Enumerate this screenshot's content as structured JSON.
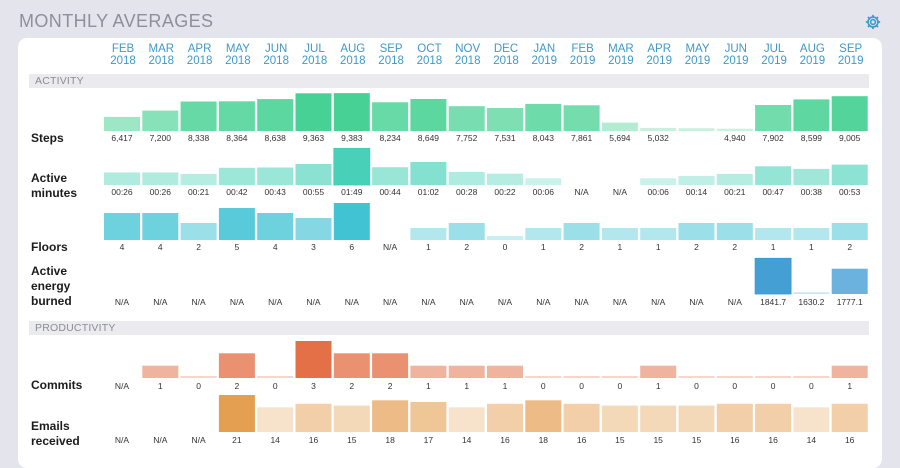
{
  "page_title": "MONTHLY AVERAGES",
  "icons": {
    "settings": "gear-icon"
  },
  "months": [
    [
      "FEB",
      "2018"
    ],
    [
      "MAR",
      "2018"
    ],
    [
      "APR",
      "2018"
    ],
    [
      "MAY",
      "2018"
    ],
    [
      "JUN",
      "2018"
    ],
    [
      "JUL",
      "2018"
    ],
    [
      "AUG",
      "2018"
    ],
    [
      "SEP",
      "2018"
    ],
    [
      "OCT",
      "2018"
    ],
    [
      "NOV",
      "2018"
    ],
    [
      "DEC",
      "2018"
    ],
    [
      "JAN",
      "2019"
    ],
    [
      "FEB",
      "2019"
    ],
    [
      "MAR",
      "2019"
    ],
    [
      "APR",
      "2019"
    ],
    [
      "MAY",
      "2019"
    ],
    [
      "JUN",
      "2019"
    ],
    [
      "JUL",
      "2019"
    ],
    [
      "AUG",
      "2019"
    ],
    [
      "SEP",
      "2019"
    ]
  ],
  "sections": {
    "activity": "ACTIVITY",
    "productivity": "PRODUCTIVITY"
  },
  "colors": {
    "accent": "#3f99c9",
    "steps": "#3ecf8e",
    "active_minutes": "#3ecfb4",
    "floors": "#38c0d2",
    "energy": "#3a9ad3",
    "commits": "#e2683c",
    "emails": "#e39a47"
  },
  "chart_data": [
    {
      "type": "bar",
      "id": "steps",
      "label": [
        "Steps"
      ],
      "values": [
        6417,
        7200,
        8338,
        8364,
        8638,
        9363,
        9383,
        8234,
        8649,
        7752,
        7531,
        8043,
        7861,
        5694,
        5032,
        5002,
        4940,
        7902,
        8599,
        9005
      ],
      "labels": [
        "6,417",
        "7,200",
        "8,338",
        "8,364",
        "8,638",
        "9,363",
        "9,383",
        "8,234",
        "8,649",
        "7,752",
        "7,531",
        "8,043",
        "7,861",
        "5,694",
        "5,032",
        "",
        "4,940",
        "7,902",
        "8,599",
        "9,005"
      ],
      "ylim": [
        4900,
        9400
      ]
    },
    {
      "type": "bar",
      "id": "active_minutes",
      "label": [
        "Active",
        "minutes"
      ],
      "values": [
        26,
        26,
        21,
        42,
        43,
        55,
        109,
        44,
        62,
        28,
        22,
        6,
        null,
        null,
        6,
        14,
        21,
        47,
        38,
        53
      ],
      "labels": [
        "00:26",
        "00:26",
        "00:21",
        "00:42",
        "00:43",
        "00:55",
        "01:49",
        "00:44",
        "01:02",
        "00:28",
        "00:22",
        "00:06",
        "N/A",
        "N/A",
        "00:06",
        "00:14",
        "00:21",
        "00:47",
        "00:38",
        "00:53"
      ],
      "ylim": [
        0,
        110
      ]
    },
    {
      "type": "bar",
      "id": "floors",
      "label": [
        "Floors"
      ],
      "values": [
        4,
        4,
        2,
        5,
        4,
        3,
        6,
        null,
        1,
        2,
        0,
        1,
        2,
        1,
        1,
        2,
        2,
        1,
        1,
        2
      ],
      "labels": [
        "4",
        "4",
        "2",
        "5",
        "4",
        "3",
        "6",
        "N/A",
        "1",
        "2",
        "0",
        "1",
        "2",
        "1",
        "1",
        "2",
        "2",
        "1",
        "1",
        "2"
      ],
      "ylim": [
        0,
        6
      ]
    },
    {
      "type": "bar",
      "id": "energy",
      "label": [
        "Active",
        "energy",
        "burned"
      ],
      "values": [
        null,
        null,
        null,
        null,
        null,
        null,
        null,
        null,
        null,
        null,
        null,
        null,
        null,
        null,
        null,
        null,
        null,
        1841.7,
        1630.2,
        1777.1
      ],
      "labels": [
        "N/A",
        "N/A",
        "N/A",
        "N/A",
        "N/A",
        "N/A",
        "N/A",
        "N/A",
        "N/A",
        "N/A",
        "N/A",
        "N/A",
        "N/A",
        "N/A",
        "N/A",
        "N/A",
        "N/A",
        "1841.7",
        "1630.2",
        "1777.1"
      ],
      "ylim": [
        1620,
        1850
      ]
    },
    {
      "type": "bar",
      "id": "commits",
      "label": [
        "Commits"
      ],
      "values": [
        null,
        1,
        0,
        2,
        0,
        3,
        2,
        2,
        1,
        1,
        1,
        0,
        0,
        0,
        1,
        0,
        0,
        0,
        0,
        1
      ],
      "labels": [
        "N/A",
        "1",
        "0",
        "2",
        "0",
        "3",
        "2",
        "2",
        "1",
        "1",
        "1",
        "0",
        "0",
        "0",
        "1",
        "0",
        "0",
        "0",
        "0",
        "1"
      ],
      "ylim": [
        0,
        3
      ]
    },
    {
      "type": "bar",
      "id": "emails",
      "label": [
        "Emails",
        "received"
      ],
      "values": [
        null,
        null,
        null,
        21,
        14,
        16,
        15,
        18,
        17,
        14,
        16,
        18,
        16,
        15,
        15,
        15,
        16,
        16,
        14,
        16
      ],
      "labels": [
        "N/A",
        "N/A",
        "N/A",
        "21",
        "14",
        "16",
        "15",
        "18",
        "17",
        "14",
        "16",
        "18",
        "16",
        "15",
        "15",
        "15",
        "16",
        "16",
        "14",
        "16"
      ],
      "ylim": [
        0,
        21
      ]
    }
  ]
}
